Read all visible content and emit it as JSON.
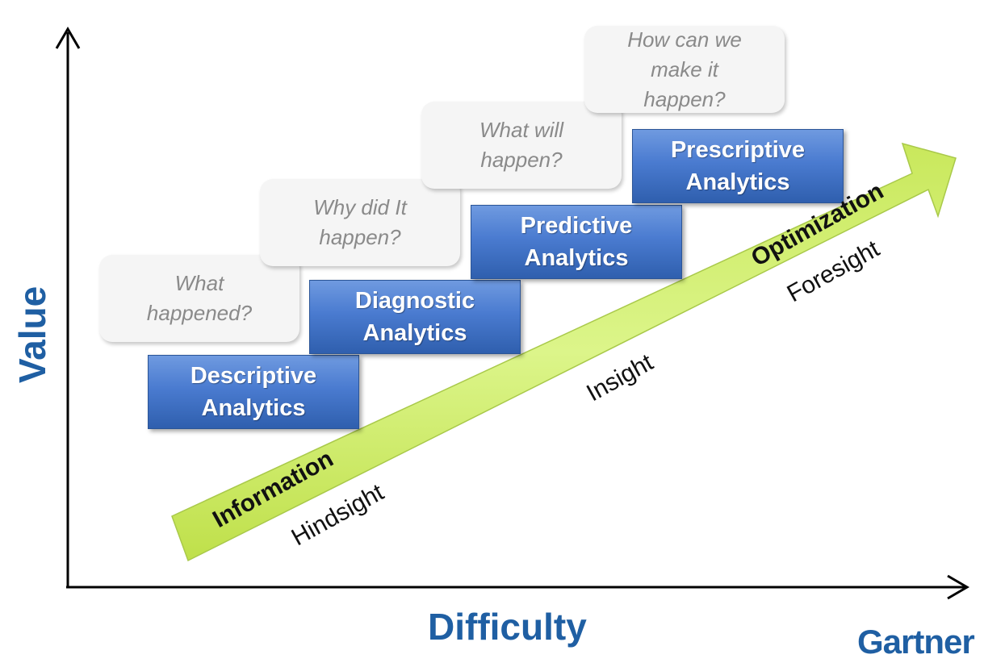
{
  "axes": {
    "y_label": "Value",
    "x_label": "Difficulty"
  },
  "steps": [
    {
      "label": "Descriptive\nAnalytics",
      "question": "What\nhappened?"
    },
    {
      "label": "Diagnostic\nAnalytics",
      "question": "Why did It\nhappen?"
    },
    {
      "label": "Predictive\nAnalytics",
      "question": "What will\nhappen?"
    },
    {
      "label": "Prescriptive\nAnalytics",
      "question": "How can we\nmake it\nhappen?"
    }
  ],
  "arrow": {
    "start_label": "Information",
    "end_label": "Optimization",
    "stages": [
      "Hindsight",
      "Insight",
      "Foresight"
    ]
  },
  "brand": "Gartner",
  "colors": {
    "axis_label": "#1f5fa3",
    "step_fill": "#4a7bd0",
    "arrow_fill": "#d6f07a",
    "bubble_fill": "#f5f5f5"
  }
}
